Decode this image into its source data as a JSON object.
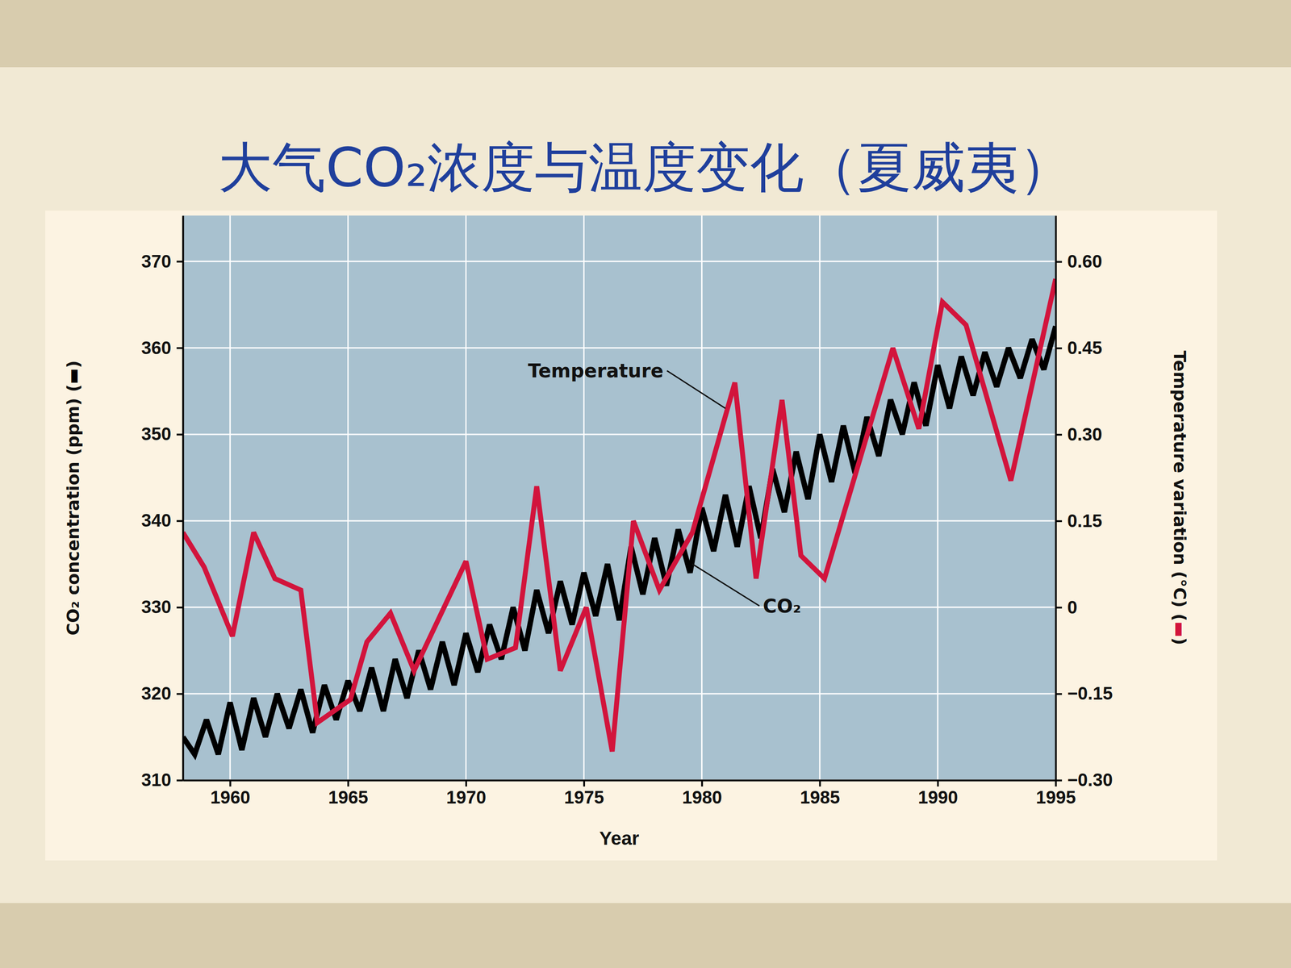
{
  "chart_data": {
    "type": "line",
    "title": "大气CO₂浓度与温度变化（夏威夷）",
    "x_label": "Year",
    "y_label": "CO₂ concentration (ppm) (▬)",
    "y2_label": "Temperature variation (°C) (▬)",
    "xlim": [
      1958,
      1995
    ],
    "xticks": [
      1960,
      1965,
      1970,
      1975,
      1980,
      1985,
      1990,
      1995
    ],
    "ylim": [
      310,
      375.3
    ],
    "yticks": [
      310,
      320,
      330,
      340,
      350,
      360,
      370
    ],
    "y2lim": [
      -0.3,
      0.68
    ],
    "y2ticks": [
      {
        "value": -0.3,
        "label": "−0.30"
      },
      {
        "value": -0.15,
        "label": "−0.15"
      },
      0,
      {
        "value": 0.15,
        "label": "0.15"
      },
      {
        "value": 0.3,
        "label": "0.30"
      },
      {
        "value": 0.45,
        "label": "0.45"
      },
      {
        "value": 0.6,
        "label": "0.60"
      }
    ],
    "grid": true,
    "series": [
      {
        "name": "CO₂",
        "color": "#000000",
        "x": [
          1958.0,
          1958.5,
          1959.0,
          1959.5,
          1960.0,
          1960.5,
          1961.0,
          1961.5,
          1962.0,
          1962.5,
          1963.0,
          1963.5,
          1964.0,
          1964.5,
          1965.0,
          1965.5,
          1966.0,
          1966.5,
          1967.0,
          1967.5,
          1968.0,
          1968.5,
          1969.0,
          1969.5,
          1970.0,
          1970.5,
          1971.0,
          1971.5,
          1972.0,
          1972.5,
          1973.0,
          1973.5,
          1974.0,
          1974.5,
          1975.0,
          1975.5,
          1976.0,
          1976.5,
          1977.0,
          1977.5,
          1978.0,
          1978.5,
          1979.0,
          1979.5,
          1980.0,
          1980.5,
          1981.0,
          1981.5,
          1982.0,
          1982.5,
          1983.0,
          1983.5,
          1984.0,
          1984.5,
          1985.0,
          1985.5,
          1986.0,
          1986.5,
          1987.0,
          1987.5,
          1988.0,
          1988.5,
          1989.0,
          1989.5,
          1990.0,
          1990.5,
          1991.0,
          1991.5,
          1992.0,
          1992.5,
          1993.0,
          1993.5,
          1994.0,
          1994.5,
          1995.0
        ],
        "values": [
          315,
          313,
          317,
          313,
          319,
          313.5,
          319.5,
          315,
          320,
          316,
          320.5,
          315.5,
          321,
          317,
          321.5,
          318,
          323,
          318,
          324,
          319.5,
          325,
          320.5,
          326,
          321,
          327,
          322.5,
          328,
          324,
          330,
          325,
          332,
          327,
          333,
          328,
          334,
          329,
          335,
          328.5,
          337,
          331.5,
          338,
          332.5,
          339,
          334,
          341.5,
          336.5,
          343,
          337,
          344,
          338,
          346,
          341,
          348,
          342.5,
          350,
          344.5,
          351,
          345.5,
          352,
          347.5,
          354,
          350,
          356,
          351,
          358,
          353,
          359,
          354.5,
          359.5,
          355.5,
          360,
          356.5,
          361,
          357.5,
          362.5
        ]
      },
      {
        "name": "Temperature",
        "color": "#d2143c",
        "axis": "y2",
        "x": [
          1958.0,
          1958.9,
          1960.1,
          1961.0,
          1961.9,
          1963.0,
          1963.7,
          1965.1,
          1965.8,
          1966.8,
          1967.8,
          1970.0,
          1970.9,
          1972.1,
          1973.0,
          1974.0,
          1975.1,
          1976.2,
          1977.1,
          1978.2,
          1979.6,
          1981.4,
          1982.3,
          1983.4,
          1984.2,
          1985.2,
          1988.1,
          1989.2,
          1990.2,
          1991.2,
          1993.1,
          1995.0
        ],
        "values": [
          0.13,
          0.07,
          -0.05,
          0.13,
          0.05,
          0.03,
          -0.2,
          -0.16,
          -0.06,
          -0.01,
          -0.11,
          0.08,
          -0.09,
          -0.07,
          0.21,
          -0.11,
          0.0,
          -0.25,
          0.15,
          0.03,
          0.13,
          0.39,
          0.05,
          0.36,
          0.09,
          0.05,
          0.45,
          0.31,
          0.53,
          0.49,
          0.22,
          0.57
        ]
      }
    ],
    "annotations": [
      {
        "series": 1,
        "x": 1975.5,
        "y": 357.2,
        "arrow_x": 1981.0,
        "arrow_y": 353.0
      },
      {
        "series": 0,
        "x": 1983.4,
        "y": 330.0,
        "arrow_x": 1979.6,
        "arrow_y": 335.0
      }
    ]
  }
}
